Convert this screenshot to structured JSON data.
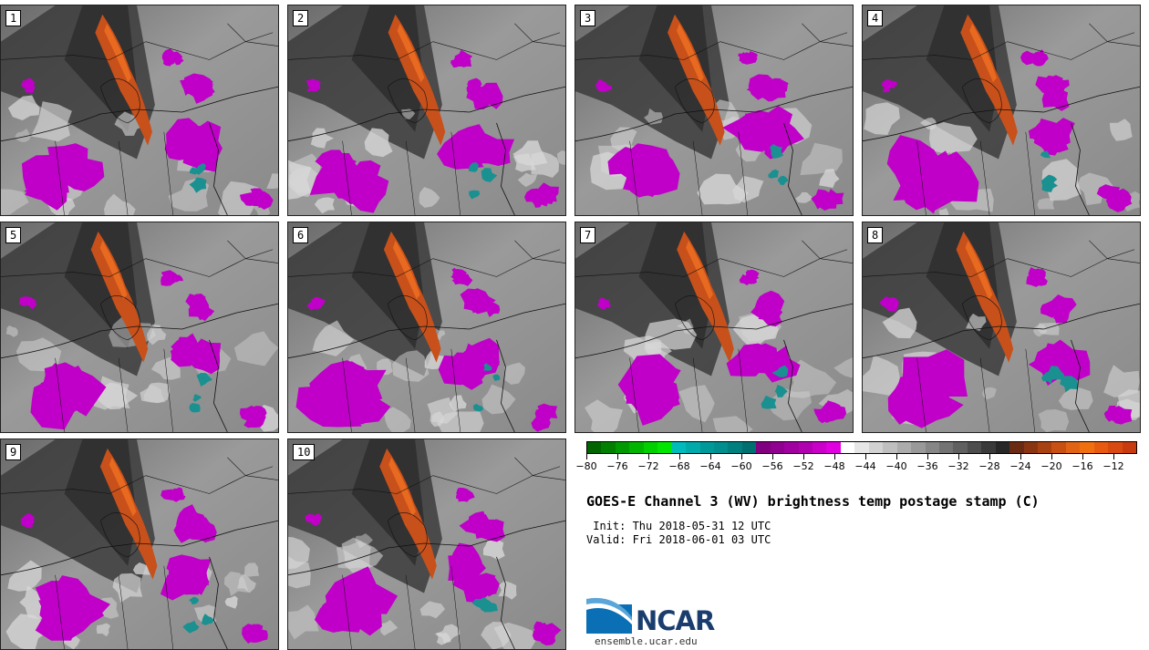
{
  "panels": [
    "1",
    "2",
    "3",
    "4",
    "5",
    "6",
    "7",
    "8",
    "9",
    "10"
  ],
  "colorbar": {
    "colors": [
      "#006400",
      "#007f00",
      "#009a00",
      "#00b400",
      "#00cf00",
      "#00e600",
      "#00bbbb",
      "#00aaaa",
      "#009999",
      "#008e8e",
      "#007f7f",
      "#006f6f",
      "#800080",
      "#900090",
      "#a000a0",
      "#b000b0",
      "#c800c8",
      "#e000e0",
      "#ffffff",
      "#e6e6e6",
      "#d2d2d2",
      "#bfbfbf",
      "#acacac",
      "#999999",
      "#868686",
      "#737373",
      "#606060",
      "#4d4d4d",
      "#3a3a3a",
      "#272727",
      "#6b2a12",
      "#8a3512",
      "#a84212",
      "#c75012",
      "#e06414",
      "#f07010",
      "#e85a10",
      "#d84a10",
      "#c83a10"
    ],
    "tick_labels": [
      "−80",
      "−76",
      "−72",
      "−68",
      "−64",
      "−60",
      "−56",
      "−52",
      "−48",
      "−44",
      "−40",
      "−36",
      "−32",
      "−28",
      "−24",
      "−20",
      "−16",
      "−12"
    ]
  },
  "title": "GOES-E Channel 3 (WV) brightness temp postage stamp (C)",
  "init": " Init: Thu 2018-05-31 12 UTC",
  "valid": "Valid: Fri 2018-06-01 03 UTC",
  "logo_text": "NCAR",
  "site": "ensemble.ucar.edu"
}
